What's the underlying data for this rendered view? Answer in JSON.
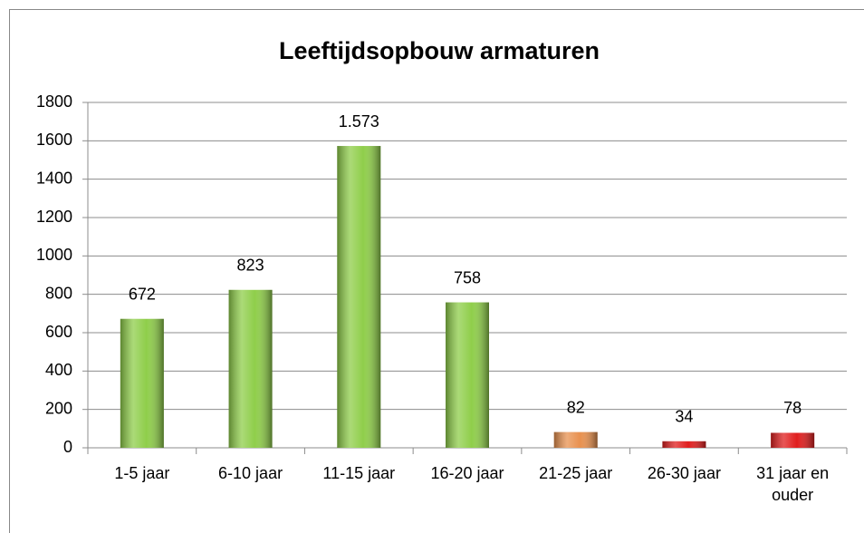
{
  "chart_data": {
    "type": "bar",
    "title": "Leeftijdsopbouw armaturen",
    "categories": [
      "1-5 jaar",
      "6-10 jaar",
      "11-15 jaar",
      "16-20 jaar",
      "21-25 jaar",
      "26-30 jaar",
      "31 jaar en ouder"
    ],
    "values": [
      672,
      823,
      1573,
      758,
      82,
      34,
      78
    ],
    "value_labels": [
      "672",
      "823",
      "1.573",
      "758",
      "82",
      "34",
      "78"
    ],
    "colors": [
      "#8fce4a",
      "#8fce4a",
      "#8fce4a",
      "#8fce4a",
      "#e8914f",
      "#e01e1e",
      "#e01e1e"
    ],
    "ylim": [
      0,
      1800
    ],
    "yticks": [
      0,
      200,
      400,
      600,
      800,
      1000,
      1200,
      1400,
      1600,
      1800
    ],
    "grid": true
  }
}
